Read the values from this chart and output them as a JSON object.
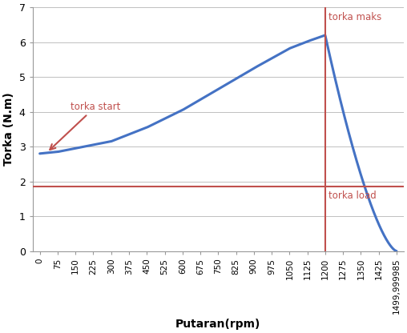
{
  "title": "",
  "xlabel": "Putaran(rpm)",
  "ylabel": "Torka (N.m)",
  "x_ticks": [
    0,
    75,
    150,
    225,
    300,
    375,
    450,
    525,
    600,
    675,
    750,
    825,
    900,
    975,
    1050,
    1125,
    1200,
    1275,
    1350,
    1425,
    1499.999985
  ],
  "x_tick_labels": [
    "0",
    "75",
    "150",
    "225",
    "300",
    "375",
    "450",
    "525",
    "600",
    "675",
    "750",
    "825",
    "900",
    "975",
    "1050",
    "1125",
    "1200",
    "1275",
    "1350",
    "1425",
    "1499,999985"
  ],
  "ylim": [
    0,
    7
  ],
  "yticks": [
    0,
    1,
    2,
    3,
    4,
    5,
    6,
    7
  ],
  "torka_load": 1.85,
  "torka_maks_x": 1200,
  "torka_maks_y": 6.2,
  "curve_color": "#4472C4",
  "line_color": "#C0504D",
  "bg_color": "#FFFFFF",
  "annotation_color": "#C0504D",
  "annotation_fontsize": 8.5,
  "label_fontsize": 10,
  "tick_fontsize": 7.5,
  "grid_color": "#C0C0C0",
  "arrow_text": "torka start",
  "maks_text": "torka maks",
  "load_text": "torka load"
}
